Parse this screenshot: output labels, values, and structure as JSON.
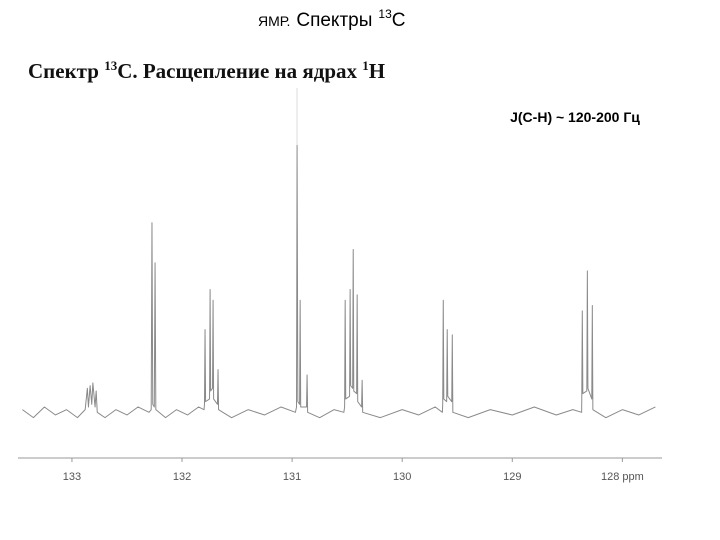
{
  "header": {
    "prefix": "ЯМР.",
    "main": "Спектры",
    "sup": "13",
    "end": "С"
  },
  "subtitle": {
    "part1": "Спектр ",
    "sup1": "13",
    "part2": "С. Расщепление на ядрах ",
    "sup2": "1",
    "part3": "Н"
  },
  "chart_data": {
    "type": "line",
    "annotation": "J(C-H) ~ 120-200 Гц",
    "color": "#8a8a8a",
    "x": [
      133.45,
      133.35,
      133.25,
      133.15,
      133.05,
      132.95,
      132.88,
      132.86,
      132.85,
      132.835,
      132.82,
      132.81,
      132.79,
      132.78,
      132.77,
      132.7,
      132.6,
      132.5,
      132.4,
      132.3,
      132.28,
      132.273,
      132.266,
      132.252,
      132.245,
      132.238,
      132.15,
      132.05,
      131.95,
      131.85,
      131.8,
      131.796,
      131.791,
      131.786,
      131.75,
      131.745,
      131.74,
      131.723,
      131.718,
      131.713,
      131.678,
      131.673,
      131.668,
      131.55,
      131.4,
      131.25,
      131.1,
      130.97,
      130.96,
      130.955,
      130.948,
      130.932,
      130.927,
      130.922,
      130.869,
      130.864,
      130.859,
      130.75,
      130.62,
      130.53,
      130.523,
      130.518,
      130.513,
      130.478,
      130.473,
      130.468,
      130.45,
      130.445,
      130.44,
      130.414,
      130.409,
      130.404,
      130.369,
      130.364,
      130.359,
      130.2,
      130,
      129.85,
      129.7,
      129.635,
      129.632,
      129.627,
      129.622,
      129.596,
      129.591,
      129.586,
      129.55,
      129.545,
      129.54,
      129.4,
      129.2,
      129,
      128.8,
      128.6,
      128.45,
      128.37,
      128.369,
      128.364,
      128.359,
      128.323,
      128.318,
      128.313,
      128.278,
      128.273,
      128.268,
      128.15,
      128,
      127.85,
      127.7
    ],
    "values": [
      1,
      -2,
      2,
      -1,
      1,
      -2,
      1,
      9,
      2,
      10,
      3,
      11,
      2,
      8,
      0,
      -2,
      1,
      -1,
      2,
      0,
      1,
      71,
      3,
      2,
      56,
      1,
      -2,
      1,
      -1,
      2,
      1,
      3,
      31,
      4,
      5,
      46,
      8,
      9,
      42,
      5,
      3,
      16,
      1,
      -2,
      1,
      -1,
      2,
      0,
      2,
      100,
      4,
      3,
      42,
      2,
      2,
      14,
      0,
      -2,
      1,
      0,
      2,
      42,
      5,
      6,
      46,
      10,
      9,
      61,
      8,
      7,
      44,
      4,
      2,
      12,
      0,
      -2,
      1,
      -1,
      2,
      0,
      3,
      42,
      5,
      4,
      31,
      6,
      4,
      29,
      0,
      -2,
      1,
      -1,
      2,
      -1,
      1,
      0,
      4,
      38,
      7,
      8,
      53,
      9,
      5,
      40,
      1,
      -2,
      1,
      -1,
      2
    ],
    "xlim": [
      133.49,
      127.64
    ],
    "ylim": [
      -7,
      120
    ],
    "xticks": [
      133,
      132,
      131,
      130,
      129,
      {
        "value": 128,
        "label": "128 ppm"
      }
    ]
  }
}
